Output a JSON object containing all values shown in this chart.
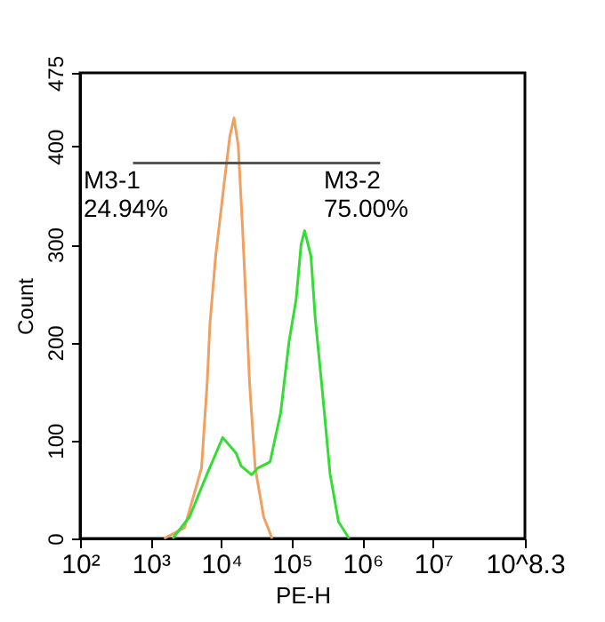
{
  "chart_data": {
    "type": "line",
    "xlabel": "PE-H",
    "ylabel": "Count",
    "log": "x",
    "xlim": [
      100,
      199526231
    ],
    "ylim": [
      0,
      475
    ],
    "xticks": [
      {
        "value": 100,
        "label": "10²"
      },
      {
        "value": 1000,
        "label": "10³"
      },
      {
        "value": 10000,
        "label": "10⁴"
      },
      {
        "value": 100000,
        "label": "10⁵"
      },
      {
        "value": 1000000,
        "label": "10⁶"
      },
      {
        "value": 10000000,
        "label": "10⁷"
      },
      {
        "value": 199526231,
        "label": "10^8.3"
      }
    ],
    "yticks": [
      0,
      100,
      200,
      300,
      400,
      475
    ],
    "grid": false,
    "marker": "none",
    "line_style": "solid",
    "series": [
      {
        "color": "#f0a060",
        "x": [
          1549,
          3020,
          5248,
          6310,
          6918,
          8318,
          10965,
          13183,
          15136,
          17378,
          19953,
          22909,
          25119,
          30200,
          39811,
          52481
        ],
        "values": [
          0,
          11,
          72,
          159,
          220,
          288,
          362,
          410,
          429,
          401,
          318,
          225,
          159,
          72,
          22,
          0
        ]
      },
      {
        "color": "#33dd33",
        "x": [
          2042,
          3548,
          6310,
          10471,
          16218,
          19055,
          26915,
          33113,
          48978,
          69183,
          91201,
          114815,
          134896,
          151356,
          186209,
          213796,
          263027,
          346737,
          457088,
          645654
        ],
        "values": [
          0,
          22,
          66,
          103,
          87,
          74,
          65,
          72,
          78,
          128,
          201,
          244,
          300,
          314,
          288,
          225,
          159,
          66,
          17,
          0
        ]
      },
      {
        "color": "#555555",
        "x": [
          562,
          28184,
          1778279
        ],
        "values": [
          383,
          383,
          383
        ]
      }
    ],
    "annotations": [
      "M3-1",
      "24.94%",
      "M3-2",
      "75.00%"
    ]
  }
}
